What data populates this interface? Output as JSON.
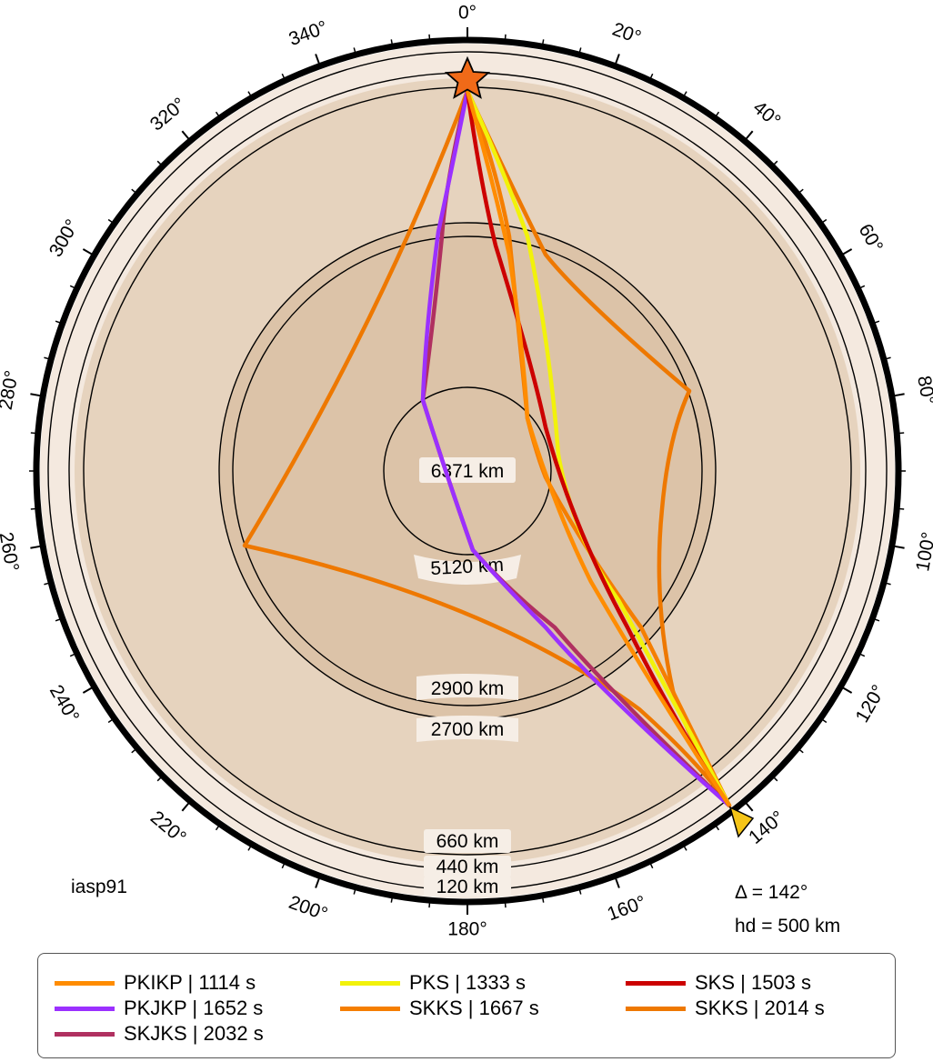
{
  "model": "iasp91",
  "distance_label": "Δ = 142°",
  "depth_label": "hd = 500 km",
  "center_label": "6371 km",
  "angle_labels": [
    "0°",
    "20°",
    "40°",
    "60°",
    "80°",
    "100°",
    "120°",
    "140°",
    "160°",
    "180°",
    "200°",
    "220°",
    "240°",
    "260°",
    "280°",
    "300°",
    "320°",
    "340°"
  ],
  "depth_rings": [
    "120 km",
    "440 km",
    "660 km",
    "2700 km",
    "2900 km",
    "5120 km"
  ],
  "source_icon": "star-icon",
  "receiver_icon": "triangle-icon",
  "colors": {
    "shell": "#f4e9df",
    "mantle": "#e6d3be",
    "outer_core": "#dcc3a8",
    "inner_core": "#dcc3a8",
    "source": "#f06a18",
    "receiver": "#f5c518"
  },
  "legend": [
    {
      "label": "PKIKP | 1114 s",
      "color": "#ff8c00"
    },
    {
      "label": "PKS | 1333 s",
      "color": "#f2f20a"
    },
    {
      "label": "SKS | 1503 s",
      "color": "#cc0000"
    },
    {
      "label": "PKJKP | 1652 s",
      "color": "#9b30ff"
    },
    {
      "label": "SKKS | 1667 s",
      "color": "#f57e00"
    },
    {
      "label": "SKKS | 2014 s",
      "color": "#ee7800"
    },
    {
      "label": "SKJKS | 2032 s",
      "color": "#b03060"
    }
  ]
}
